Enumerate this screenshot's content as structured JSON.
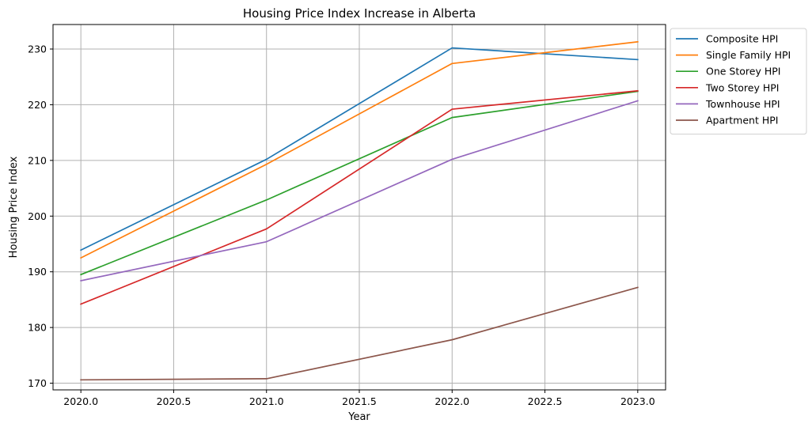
{
  "chart_data": {
    "type": "line",
    "title": "Housing Price Index Increase in Alberta",
    "xlabel": "Year",
    "ylabel": "Housing Price Index",
    "x": [
      2020.0,
      2021.0,
      2022.0,
      2023.0
    ],
    "xlim": [
      2019.85,
      2023.15
    ],
    "ylim": [
      168.8,
      234.4
    ],
    "xticks": [
      "2020.0",
      "2020.5",
      "2021.0",
      "2021.5",
      "2022.0",
      "2022.5",
      "2023.0"
    ],
    "xtick_values": [
      2020.0,
      2020.5,
      2021.0,
      2021.5,
      2022.0,
      2022.5,
      2023.0
    ],
    "yticks": [
      "170",
      "180",
      "190",
      "200",
      "210",
      "220",
      "230"
    ],
    "ytick_values": [
      170,
      180,
      190,
      200,
      210,
      220,
      230
    ],
    "grid": true,
    "legend_position": "outside-top-right",
    "series": [
      {
        "name": "Composite HPI",
        "color": "#1f77b4",
        "values": [
          193.9,
          210.2,
          230.2,
          228.1
        ]
      },
      {
        "name": "Single Family HPI",
        "color": "#ff7f0e",
        "values": [
          192.5,
          209.3,
          227.4,
          231.3
        ]
      },
      {
        "name": "One Storey HPI",
        "color": "#2ca02c",
        "values": [
          189.5,
          202.9,
          217.7,
          222.4
        ]
      },
      {
        "name": "Two Storey HPI",
        "color": "#d62728",
        "values": [
          184.2,
          197.7,
          219.2,
          222.5
        ]
      },
      {
        "name": "Townhouse HPI",
        "color": "#9467bd",
        "values": [
          188.4,
          195.4,
          210.2,
          220.7
        ]
      },
      {
        "name": "Apartment HPI",
        "color": "#8c564b",
        "values": [
          170.6,
          170.8,
          177.8,
          187.2
        ]
      }
    ]
  }
}
